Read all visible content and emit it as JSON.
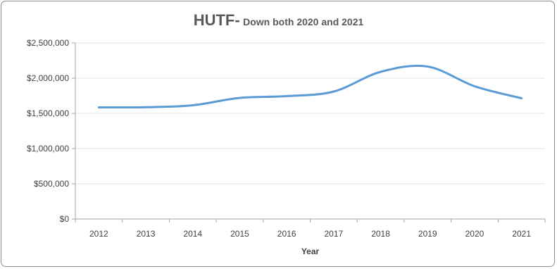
{
  "chart_data": {
    "type": "line",
    "title": "HUTF-",
    "subtitle": "Down both 2020 and 2021",
    "xlabel": "Year",
    "ylabel": "",
    "categories": [
      "2012",
      "2013",
      "2014",
      "2015",
      "2016",
      "2017",
      "2018",
      "2019",
      "2020",
      "2021"
    ],
    "series": [
      {
        "values": [
          1585000,
          1588000,
          1615000,
          1720000,
          1745000,
          1810000,
          2090000,
          2165000,
          1885000,
          1715000
        ]
      }
    ],
    "ylim": [
      0,
      2500000
    ],
    "y_ticks": [
      0,
      500000,
      1000000,
      1500000,
      2000000,
      2500000
    ],
    "y_tick_labels": [
      "$0",
      "$500,000",
      "$1,000,000",
      "$1,500,000",
      "$2,000,000",
      "$2,500,000"
    ],
    "smooth": true,
    "grid": "horizontal",
    "colors": {
      "line": "#5b9bd5",
      "grid": "#d9e6f2",
      "axis": "#a6a6a6",
      "border": "#8c8c8c"
    }
  }
}
